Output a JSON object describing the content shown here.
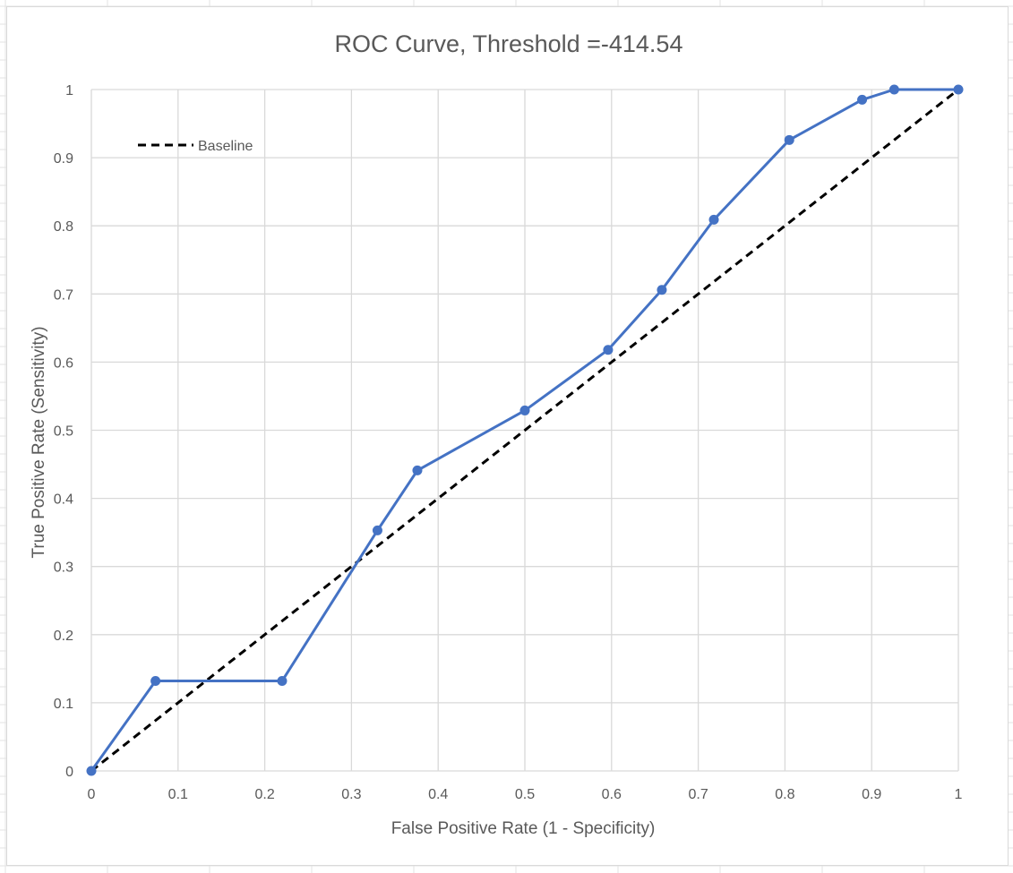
{
  "chart_data": {
    "type": "line",
    "title": "ROC Curve, Threshold =-414.54",
    "xlabel": "False Positive Rate (1  - Specificity)",
    "ylabel": "True Positive Rate (Sensitivity)",
    "xlim": [
      0,
      1
    ],
    "ylim": [
      0,
      1
    ],
    "x_ticks": [
      "0",
      "0.1",
      "0.2",
      "0.3",
      "0.4",
      "0.5",
      "0.6",
      "0.7",
      "0.8",
      "0.9",
      "1"
    ],
    "y_ticks": [
      "0",
      "0.1",
      "0.2",
      "0.3",
      "0.4",
      "0.5",
      "0.6",
      "0.7",
      "0.8",
      "0.9",
      "1"
    ],
    "grid": true,
    "legend_position": "top-left",
    "series": [
      {
        "values_x": [
          0,
          0.074,
          0.22,
          0.33,
          0.376,
          0.5,
          0.596,
          0.658,
          0.718,
          0.805,
          0.889,
          0.926,
          1
        ],
        "values_y": [
          0,
          0.132,
          0.132,
          0.353,
          0.441,
          0.529,
          0.618,
          0.706,
          0.809,
          0.926,
          0.985,
          1,
          1
        ],
        "color": "#4472C4",
        "style": "solid-with-markers"
      },
      {
        "name": "Baseline",
        "values_x": [
          0,
          1
        ],
        "values_y": [
          0,
          1
        ],
        "color": "#000000",
        "style": "dashed"
      }
    ]
  }
}
